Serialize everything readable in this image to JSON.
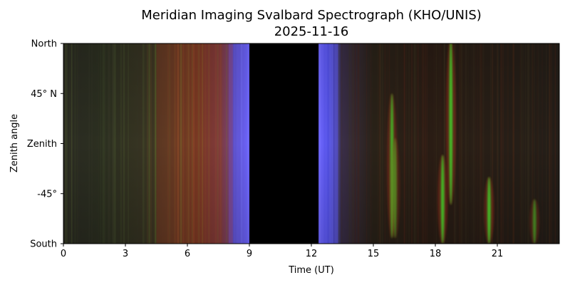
{
  "chart_data": {
    "type": "heatmap",
    "title": [
      "Meridian Imaging Svalbard Spectrograph (KHO/UNIS)",
      "2025-11-16"
    ],
    "xlabel": "Time (UT)",
    "ylabel": "Zenith angle",
    "xlim": [
      0,
      24
    ],
    "x_ticks": [
      0,
      3,
      6,
      9,
      12,
      15,
      18,
      21
    ],
    "y_ticks": [
      {
        "value": 90,
        "label": "North"
      },
      {
        "value": 45,
        "label": "45° N"
      },
      {
        "value": 0,
        "label": "Zenith"
      },
      {
        "value": -45,
        "label": "-45°"
      },
      {
        "value": -90,
        "label": "South"
      }
    ],
    "ylim": [
      -90,
      90
    ],
    "grid": false,
    "data_gap_ut": [
      9.0,
      12.35
    ],
    "colors": {
      "background": "#241c14",
      "gap": "#000000",
      "red_emission": "#b8331e",
      "green_emission": "#3fd62b",
      "twilight_blue": "#5a54ff"
    },
    "features": [
      {
        "type": "twilight",
        "x": [
          8.0,
          9.0
        ],
        "color": "#5a54ff"
      },
      {
        "type": "twilight",
        "x": [
          12.35,
          13.3
        ],
        "color": "#5a54ff"
      },
      {
        "type": "diffuse_red",
        "x": [
          4.5,
          8.2
        ],
        "color": "#b8331e"
      },
      {
        "type": "aurora_green",
        "x": 15.9,
        "y_center": -20,
        "y_half": 65,
        "peak": 0.9
      },
      {
        "type": "aurora_green",
        "x": 16.05,
        "y_center": -40,
        "y_half": 45,
        "peak": 0.6
      },
      {
        "type": "aurora_green",
        "x": 18.35,
        "y_center": -50,
        "y_half": 40,
        "peak": 0.95
      },
      {
        "type": "aurora_green",
        "x": 18.75,
        "y_center": 20,
        "y_half": 75,
        "peak": 1.0
      },
      {
        "type": "aurora_green",
        "x": 20.6,
        "y_center": -60,
        "y_half": 30,
        "peak": 0.95
      },
      {
        "type": "aurora_green",
        "x": 22.8,
        "y_center": -70,
        "y_half": 20,
        "peak": 0.6
      }
    ]
  }
}
